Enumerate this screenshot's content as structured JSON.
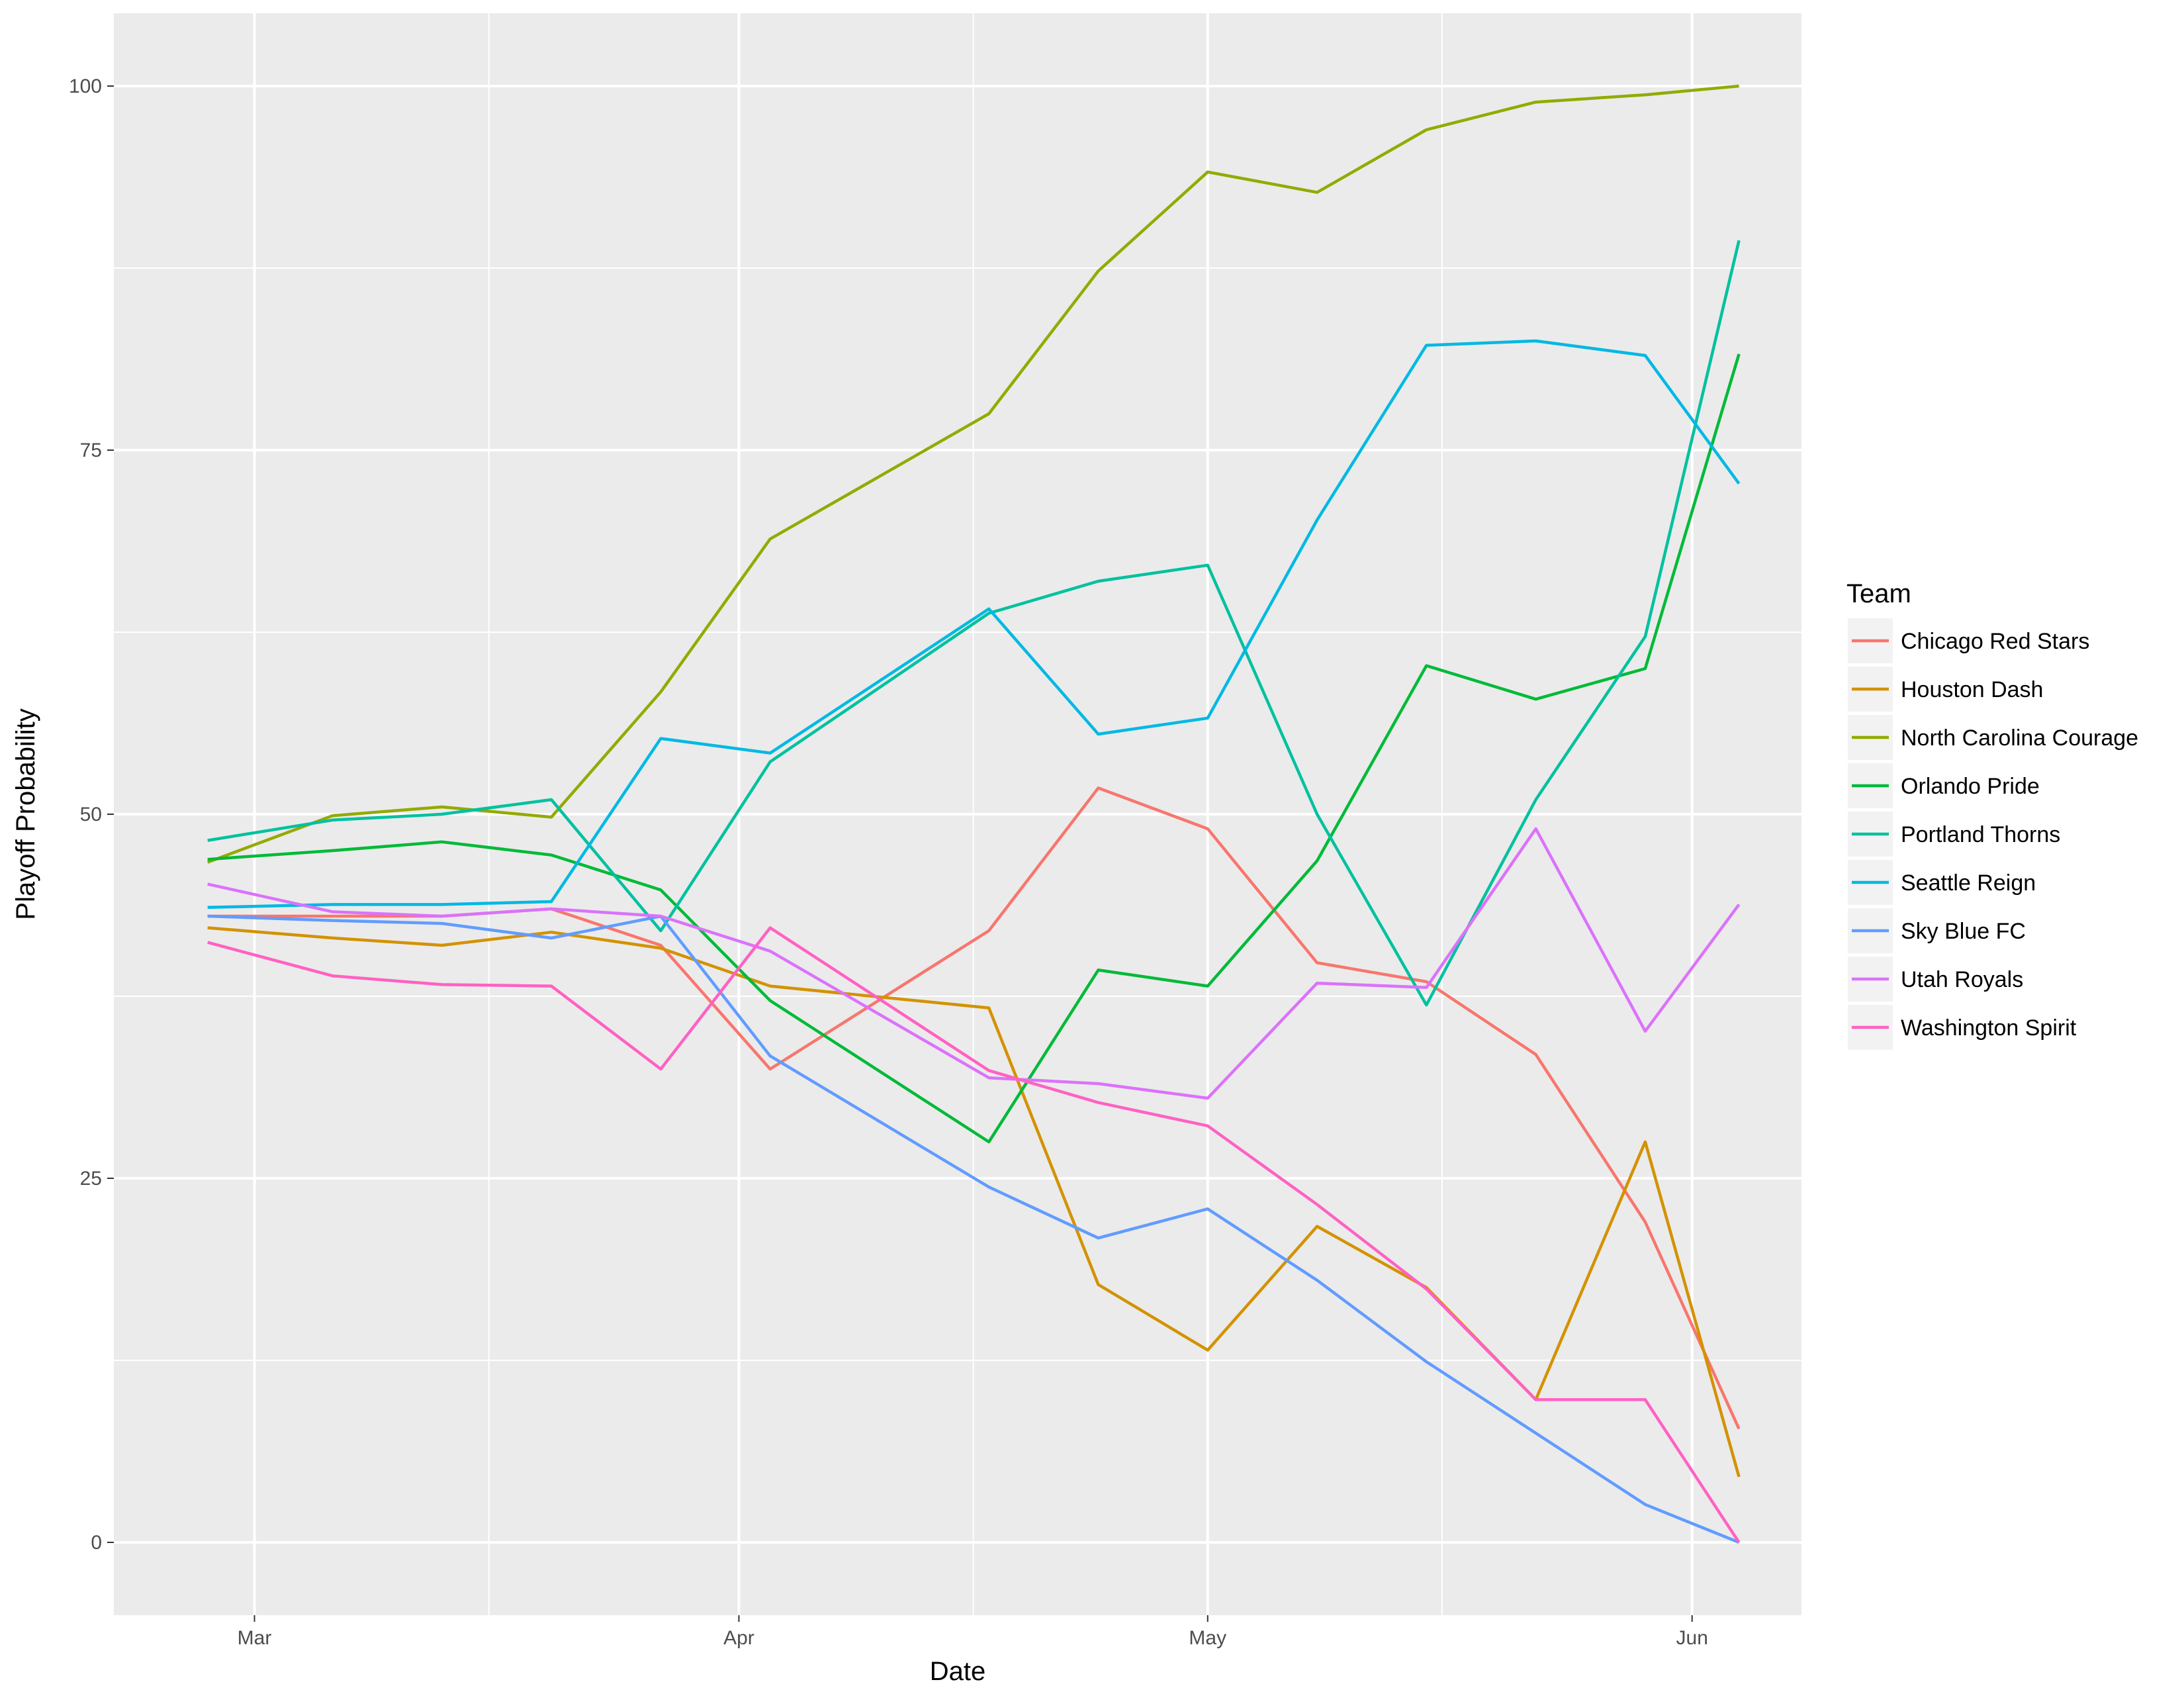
{
  "chart_data": {
    "type": "line",
    "title": "",
    "xlabel": "Date",
    "ylabel": "Playoff Probability",
    "x_type": "date",
    "xlim": [
      "2018-02-20",
      "2018-06-08"
    ],
    "ylim": [
      -5,
      105
    ],
    "x_ticks": [
      {
        "date": "2018-03-01",
        "label": "Mar"
      },
      {
        "date": "2018-04-01",
        "label": "Apr"
      },
      {
        "date": "2018-05-01",
        "label": "May"
      },
      {
        "date": "2018-06-01",
        "label": "Jun"
      }
    ],
    "x_minor_ticks": [
      "2018-03-16",
      "2018-04-16",
      "2018-05-16"
    ],
    "y_ticks": [
      0,
      25,
      50,
      75,
      100
    ],
    "y_minor_ticks": [
      12.5,
      37.5,
      62.5,
      87.5
    ],
    "grid": true,
    "background": "#ebebeb",
    "legend": {
      "title": "Team",
      "position": "right"
    },
    "x": [
      "2018-02-26",
      "2018-03-06",
      "2018-03-13",
      "2018-03-20",
      "2018-03-27",
      "2018-04-03",
      "2018-04-17",
      "2018-04-24",
      "2018-05-01",
      "2018-05-08",
      "2018-05-15",
      "2018-05-22",
      "2018-05-29",
      "2018-06-04"
    ],
    "series": [
      {
        "name": "Chicago Red Stars",
        "color": "#F8766D",
        "values": [
          43.0,
          43.0,
          43.0,
          43.5,
          41.0,
          32.5,
          42.0,
          51.8,
          49.0,
          39.8,
          38.5,
          33.5,
          22.0,
          7.8
        ]
      },
      {
        "name": "Houston Dash",
        "color": "#D39200",
        "values": [
          42.2,
          41.5,
          41.0,
          41.9,
          40.8,
          38.2,
          36.7,
          17.7,
          13.2,
          21.7,
          17.5,
          9.8,
          27.5,
          4.5
        ]
      },
      {
        "name": "North Carolina Courage",
        "color": "#93AA00",
        "values": [
          46.7,
          49.9,
          50.5,
          49.8,
          58.4,
          68.9,
          77.5,
          87.3,
          94.1,
          92.7,
          97.0,
          98.9,
          99.4,
          100.0
        ]
      },
      {
        "name": "Orlando Pride",
        "color": "#00BA38",
        "values": [
          46.9,
          47.5,
          48.1,
          47.2,
          44.8,
          37.2,
          27.5,
          39.3,
          38.2,
          46.8,
          60.2,
          57.9,
          60.0,
          81.6
        ]
      },
      {
        "name": "Portland Thorns",
        "color": "#00C19F",
        "values": [
          48.2,
          49.6,
          50.0,
          51.0,
          42.0,
          53.6,
          63.8,
          66.0,
          67.1,
          50.0,
          36.9,
          51.0,
          62.2,
          89.4
        ]
      },
      {
        "name": "Seattle Reign",
        "color": "#00B9E3",
        "values": [
          43.6,
          43.8,
          43.8,
          44.0,
          55.2,
          54.2,
          64.1,
          55.5,
          56.6,
          70.2,
          82.2,
          82.5,
          81.5,
          72.7
        ]
      },
      {
        "name": "Sky Blue FC",
        "color": "#619CFF",
        "values": [
          43.0,
          42.7,
          42.5,
          41.5,
          43.0,
          33.4,
          24.4,
          20.9,
          22.9,
          18.0,
          12.4,
          7.5,
          2.6,
          0.0
        ]
      },
      {
        "name": "Utah Royals",
        "color": "#DB72FB",
        "values": [
          45.2,
          43.3,
          43.0,
          43.5,
          43.0,
          40.6,
          31.9,
          31.5,
          30.5,
          38.4,
          38.1,
          49.0,
          35.1,
          43.8
        ]
      },
      {
        "name": "Washington Spirit",
        "color": "#FF61C3",
        "values": [
          41.2,
          38.9,
          38.3,
          38.2,
          32.5,
          42.2,
          32.4,
          30.2,
          28.6,
          23.2,
          17.4,
          9.8,
          9.8,
          0.0
        ]
      }
    ]
  }
}
